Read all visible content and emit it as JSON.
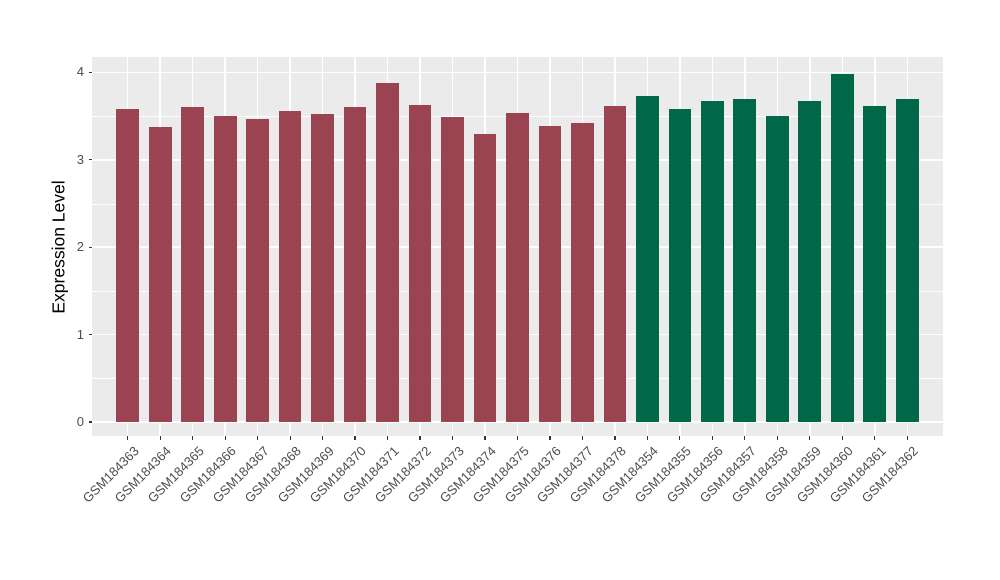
{
  "chart_data": {
    "type": "bar",
    "title": "",
    "xlabel": "",
    "ylabel": "Expression Level",
    "ylim": [
      0,
      4.2
    ],
    "yticks": [
      0,
      1,
      2,
      3,
      4
    ],
    "minor_gridlines": [
      0.5,
      1.5,
      2.5,
      3.5
    ],
    "grid": "on",
    "legend": "none",
    "series": [
      {
        "name": "group-red",
        "color": "#9a4452",
        "categories": [
          "GSM184363",
          "GSM184364",
          "GSM184365",
          "GSM184366",
          "GSM184367",
          "GSM184368",
          "GSM184369",
          "GSM184370",
          "GSM184371",
          "GSM184372",
          "GSM184373",
          "GSM184374",
          "GSM184375",
          "GSM184376",
          "GSM184377",
          "GSM184378"
        ],
        "values": [
          3.58,
          3.38,
          3.6,
          3.5,
          3.47,
          3.56,
          3.52,
          3.6,
          3.88,
          3.63,
          3.49,
          3.3,
          3.54,
          3.39,
          3.42,
          3.62
        ]
      },
      {
        "name": "group-green",
        "color": "#006848",
        "categories": [
          "GSM184354",
          "GSM184355",
          "GSM184356",
          "GSM184357",
          "GSM184358",
          "GSM184359",
          "GSM184360",
          "GSM184361",
          "GSM184362"
        ],
        "values": [
          3.73,
          3.58,
          3.67,
          3.7,
          3.5,
          3.67,
          3.98,
          3.61,
          3.69
        ]
      }
    ]
  },
  "style": {
    "panel_bg": "#ebebeb",
    "grid_color": "#ffffff",
    "tick_color": "#333333",
    "axis_text_color": "#4d4d4d",
    "axis_title_color": "#000000",
    "background": "#ffffff"
  }
}
